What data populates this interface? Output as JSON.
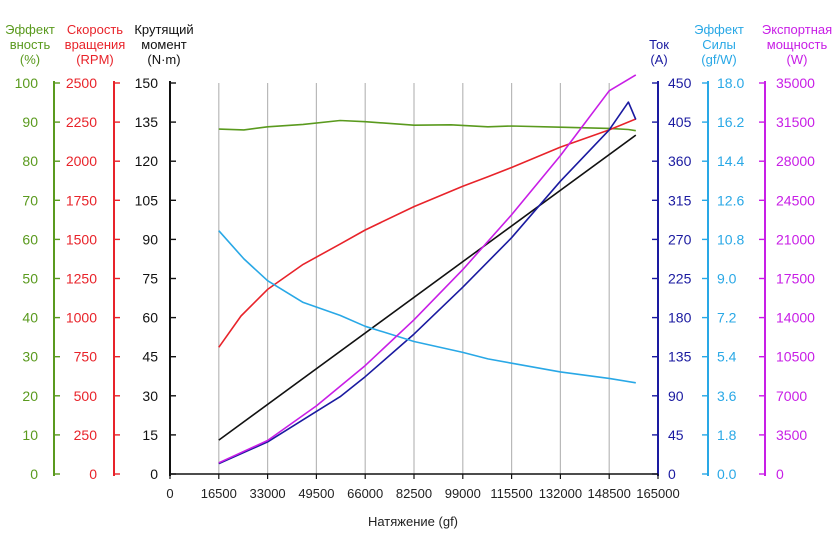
{
  "chart_data": {
    "type": "line",
    "title": "",
    "xlabel": "Натяжение (gf)",
    "x_ticks": [
      "0",
      "16500",
      "33000",
      "49500",
      "66000",
      "82500",
      "99000",
      "115500",
      "132000",
      "148500",
      "165000"
    ],
    "xlim": [
      0,
      165000
    ],
    "grid": {
      "vertical": true,
      "horizontal": false
    },
    "legend": "none",
    "axes": [
      {
        "id": "efficiency",
        "side": "left",
        "title_lines": [
          "Эффект",
          "вность",
          "(%)"
        ],
        "color": "#5a9a1e",
        "min": 0,
        "max": 100,
        "ticks": [
          "0",
          "10",
          "20",
          "30",
          "40",
          "50",
          "60",
          "70",
          "80",
          "90",
          "100"
        ]
      },
      {
        "id": "rpm",
        "side": "left",
        "title_lines": [
          "Скорость",
          "вращения",
          "(RPM)"
        ],
        "color": "#e8232a",
        "min": 0,
        "max": 2500,
        "ticks": [
          "0",
          "250",
          "500",
          "750",
          "1000",
          "1250",
          "1500",
          "1750",
          "2000",
          "2250",
          "2500"
        ]
      },
      {
        "id": "torque",
        "side": "left",
        "title_lines": [
          "Крутящий",
          "момент",
          "(N·m)"
        ],
        "color": "#111111",
        "min": 0,
        "max": 150,
        "ticks": [
          "0",
          "15",
          "30",
          "45",
          "60",
          "75",
          "90",
          "105",
          "120",
          "135",
          "150"
        ]
      },
      {
        "id": "current",
        "side": "right",
        "title_lines": [
          "Ток",
          "(A)"
        ],
        "color": "#1a1aa0",
        "min": 0,
        "max": 450,
        "ticks": [
          "0",
          "45",
          "90",
          "135",
          "180",
          "225",
          "270",
          "315",
          "360",
          "405",
          "450"
        ]
      },
      {
        "id": "force_eff",
        "side": "right",
        "title_lines": [
          "Эффект",
          "Силы",
          "(gf/W)"
        ],
        "color": "#29a8e6",
        "min": 0,
        "max": 18,
        "ticks": [
          "0.0",
          "1.8",
          "3.6",
          "5.4",
          "7.2",
          "9.0",
          "10.8",
          "12.6",
          "14.4",
          "16.2",
          "18.0"
        ]
      },
      {
        "id": "power",
        "side": "right",
        "title_lines": [
          "Экспортная",
          "мощность",
          "(W)"
        ],
        "color": "#c81ee6",
        "min": 0,
        "max": 35000,
        "ticks": [
          "0",
          "3500",
          "7000",
          "10500",
          "14000",
          "17500",
          "21000",
          "24500",
          "28000",
          "31500",
          "35000"
        ]
      }
    ],
    "series": [
      {
        "axis": "efficiency",
        "color": "#5a9a1e",
        "x": [
          16500,
          25000,
          33000,
          45000,
          57500,
          66000,
          82500,
          95000,
          107500,
          115500,
          132000,
          148500,
          155000,
          157500
        ],
        "y": [
          88.2,
          88.0,
          88.8,
          89.4,
          90.4,
          90.1,
          89.2,
          89.3,
          88.8,
          89.0,
          88.7,
          88.4,
          88.1,
          87.8
        ]
      },
      {
        "axis": "rpm",
        "color": "#e8232a",
        "x": [
          16500,
          24000,
          33000,
          45000,
          57500,
          66000,
          82500,
          99000,
          107500,
          115500,
          132000,
          148500,
          157500
        ],
        "y": [
          810,
          1010,
          1180,
          1340,
          1470,
          1560,
          1710,
          1840,
          1900,
          1960,
          2090,
          2200,
          2270
        ]
      },
      {
        "axis": "torque",
        "color": "#111111",
        "x": [
          16500,
          157500
        ],
        "y": [
          13,
          130
        ]
      },
      {
        "axis": "current",
        "color": "#1a1aa0",
        "x": [
          16500,
          33000,
          49500,
          57500,
          66000,
          82500,
          99000,
          115500,
          132000,
          148500,
          155000,
          157500
        ],
        "y": [
          12,
          37,
          72,
          89,
          112,
          161,
          215,
          272,
          337,
          396,
          428,
          408
        ]
      },
      {
        "axis": "force_eff",
        "color": "#29a8e6",
        "x": [
          16500,
          25000,
          33000,
          45000,
          57500,
          66000,
          82500,
          99000,
          107500,
          115500,
          132000,
          148500,
          157500
        ],
        "y": [
          11.2,
          9.9,
          8.9,
          7.9,
          7.3,
          6.8,
          6.1,
          5.6,
          5.3,
          5.1,
          4.7,
          4.4,
          4.2
        ]
      },
      {
        "axis": "power",
        "color": "#c81ee6",
        "x": [
          16500,
          33000,
          49500,
          66000,
          82500,
          99000,
          115500,
          132000,
          148500,
          157500
        ],
        "y": [
          1000,
          3000,
          6100,
          9700,
          13800,
          18300,
          23200,
          28500,
          34300,
          37500
        ]
      }
    ]
  }
}
